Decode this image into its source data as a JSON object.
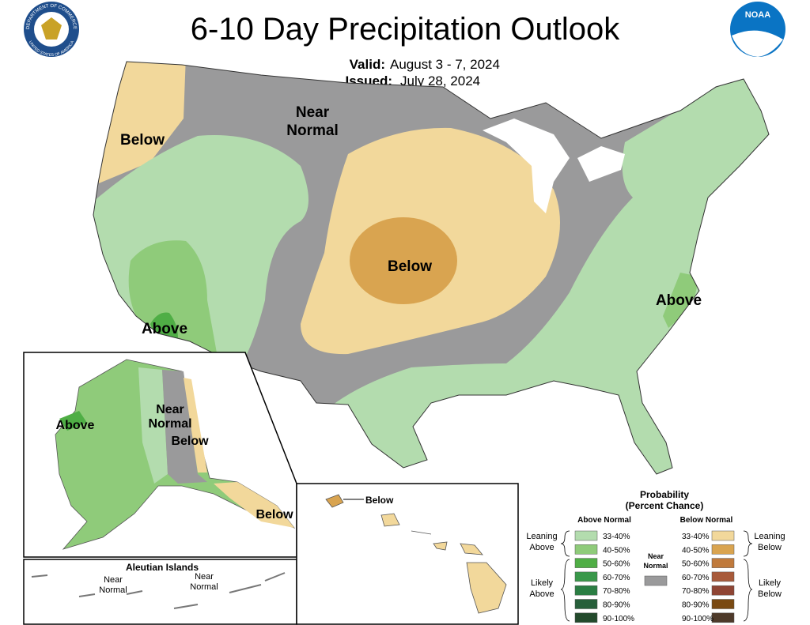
{
  "header": {
    "title": "6-10 Day Precipitation Outlook",
    "valid_label": "Valid:",
    "valid": "August 3 - 7, 2024",
    "issued_label": "Issued:",
    "issued": "July 28, 2024",
    "noaa_logo": "NOAA",
    "seal_top": "DEPARTMENT OF COMMERCE",
    "seal_bottom": "UNITED STATES OF AMERICA"
  },
  "conus_labels": [
    {
      "lines": [
        "Near",
        "Normal"
      ]
    },
    {
      "lines": [
        "Below"
      ]
    },
    {
      "lines": [
        "Below"
      ]
    },
    {
      "lines": [
        "Above"
      ]
    },
    {
      "lines": [
        "Above"
      ]
    }
  ],
  "alaska_labels": [
    {
      "lines": [
        "Above"
      ]
    },
    {
      "lines": [
        "Near",
        "Normal"
      ]
    },
    {
      "lines": [
        "Below"
      ]
    },
    {
      "lines": [
        "Below"
      ]
    }
  ],
  "aleutians": {
    "title": "Aleutian Islands",
    "labels": [
      {
        "lines": [
          "Near",
          "Normal"
        ]
      },
      {
        "lines": [
          "Near",
          "Normal"
        ]
      }
    ]
  },
  "hawaii_labels": [
    {
      "lines": [
        "Below"
      ]
    }
  ],
  "legend": {
    "title": "Probability",
    "subtitle": "(Percent Chance)",
    "above_title": "Above Normal",
    "below_title": "Below Normal",
    "leaning_above": [
      "Leaning",
      "Above"
    ],
    "likely_above": [
      "Likely",
      "Above"
    ],
    "leaning_below": [
      "Leaning",
      "Below"
    ],
    "likely_below": [
      "Likely",
      "Below"
    ],
    "near_normal": [
      "Near",
      "Normal"
    ],
    "near_normal_color": "#9a9a9b",
    "above_bins": [
      {
        "label": "33-40%",
        "color": "#b3dcae"
      },
      {
        "label": "40-50%",
        "color": "#8fcb7a"
      },
      {
        "label": "50-60%",
        "color": "#4fae45"
      },
      {
        "label": "60-70%",
        "color": "#39984a"
      },
      {
        "label": "70-80%",
        "color": "#2a7e43"
      },
      {
        "label": "80-90%",
        "color": "#275f3a"
      },
      {
        "label": "90-100%",
        "color": "#234a2c"
      }
    ],
    "below_bins": [
      {
        "label": "33-40%",
        "color": "#f2d89b"
      },
      {
        "label": "40-50%",
        "color": "#d9a450"
      },
      {
        "label": "50-60%",
        "color": "#c07a3c"
      },
      {
        "label": "60-70%",
        "color": "#a85a3a"
      },
      {
        "label": "70-80%",
        "color": "#8f4534"
      },
      {
        "label": "80-90%",
        "color": "#7a4a13"
      },
      {
        "label": "90-100%",
        "color": "#4e3a2a"
      }
    ]
  }
}
